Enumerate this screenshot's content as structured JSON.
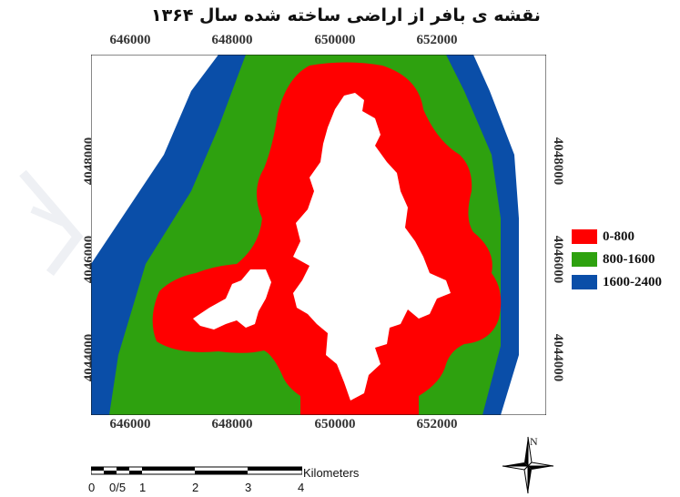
{
  "title": "نقشه ی بافر از اراضی ساخته شده سال ۱۳۶۴",
  "x_ticks": [
    "646000",
    "648000",
    "650000",
    "652000"
  ],
  "y_ticks": [
    "4048000",
    "4046000",
    "4044000"
  ],
  "legend": [
    {
      "label": "0-800",
      "color": "#ff0000"
    },
    {
      "label": "800-1600",
      "color": "#2ea10f"
    },
    {
      "label": "1600-2400",
      "color": "#0a4ea8"
    }
  ],
  "scale": {
    "labels": [
      "0",
      "0/5",
      "1",
      "2",
      "3",
      "4"
    ],
    "unit": "Kilometers"
  },
  "north_label": "N",
  "colors": {
    "built_land": "#ffffff",
    "outside": "#ffffff"
  }
}
